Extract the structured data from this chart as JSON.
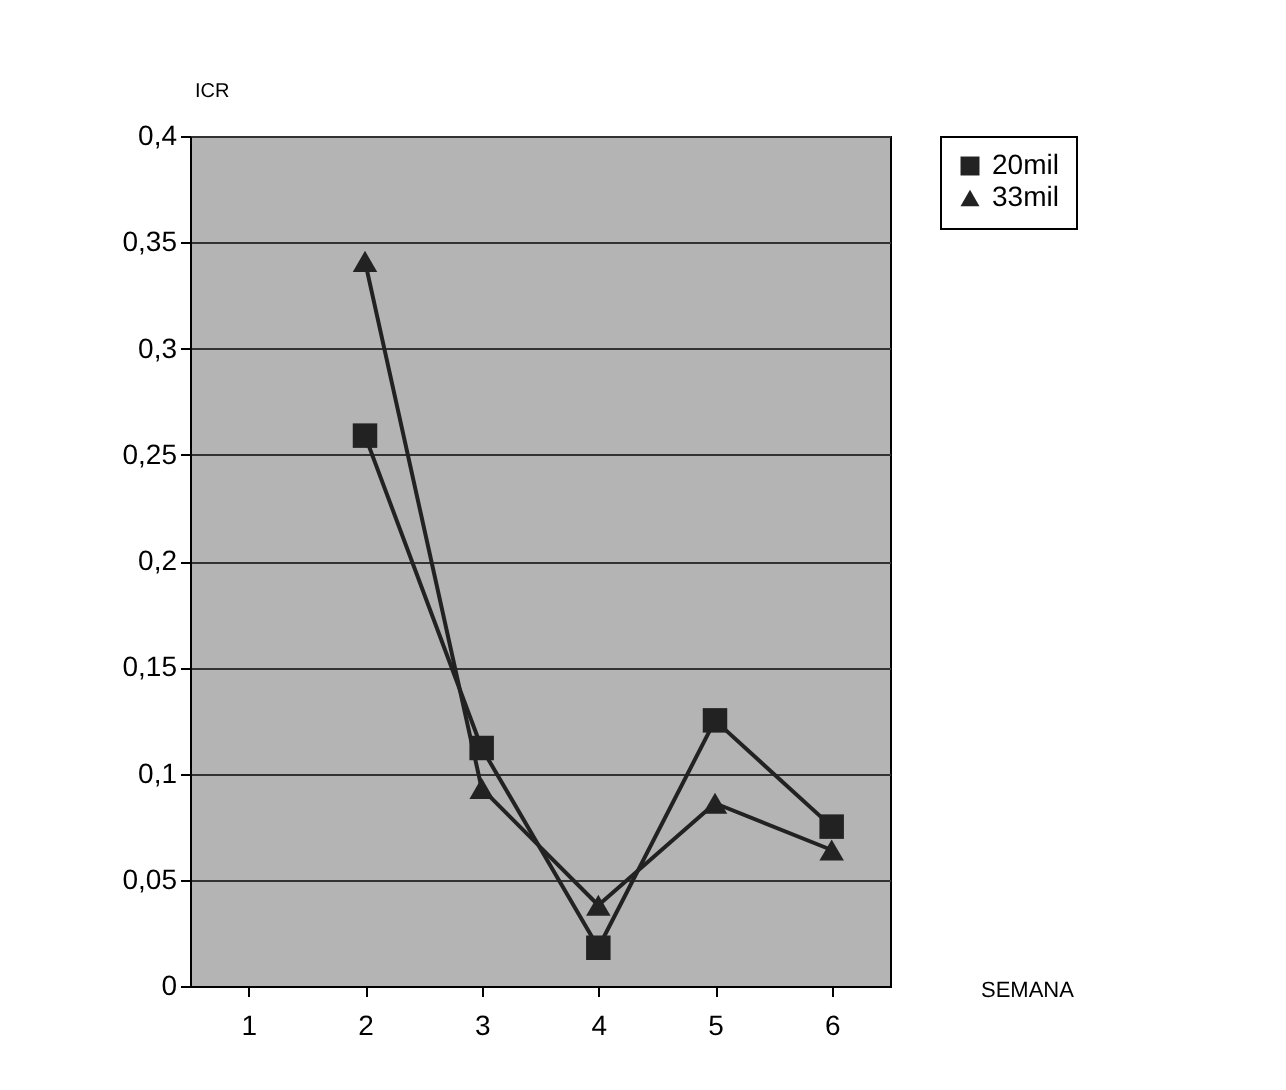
{
  "chart_data": {
    "type": "line",
    "xlabel": "SEMANA",
    "ylabel": "ICR",
    "categories": [
      "1",
      "2",
      "3",
      "4",
      "5",
      "6"
    ],
    "series": [
      {
        "name": "20mil",
        "color": "#222222",
        "marker": "square",
        "values": [
          null,
          0.259,
          0.112,
          0.018,
          0.125,
          0.075
        ]
      },
      {
        "name": "33mil",
        "color": "#222222",
        "marker": "triangle",
        "values": [
          null,
          0.341,
          0.093,
          0.038,
          0.086,
          0.064
        ]
      }
    ],
    "ylim": [
      0,
      0.4
    ],
    "yticks": [
      {
        "value": 0,
        "label": "0"
      },
      {
        "value": 0.05,
        "label": "0,05"
      },
      {
        "value": 0.1,
        "label": "0,1"
      },
      {
        "value": 0.15,
        "label": "0,15"
      },
      {
        "value": 0.2,
        "label": "0,2"
      },
      {
        "value": 0.25,
        "label": "0,25"
      },
      {
        "value": 0.3,
        "label": "0,3"
      },
      {
        "value": 0.35,
        "label": "0,35"
      },
      {
        "value": 0.4,
        "label": "0,4"
      }
    ],
    "grid": "y",
    "legend": "right",
    "line_style": "solid"
  }
}
